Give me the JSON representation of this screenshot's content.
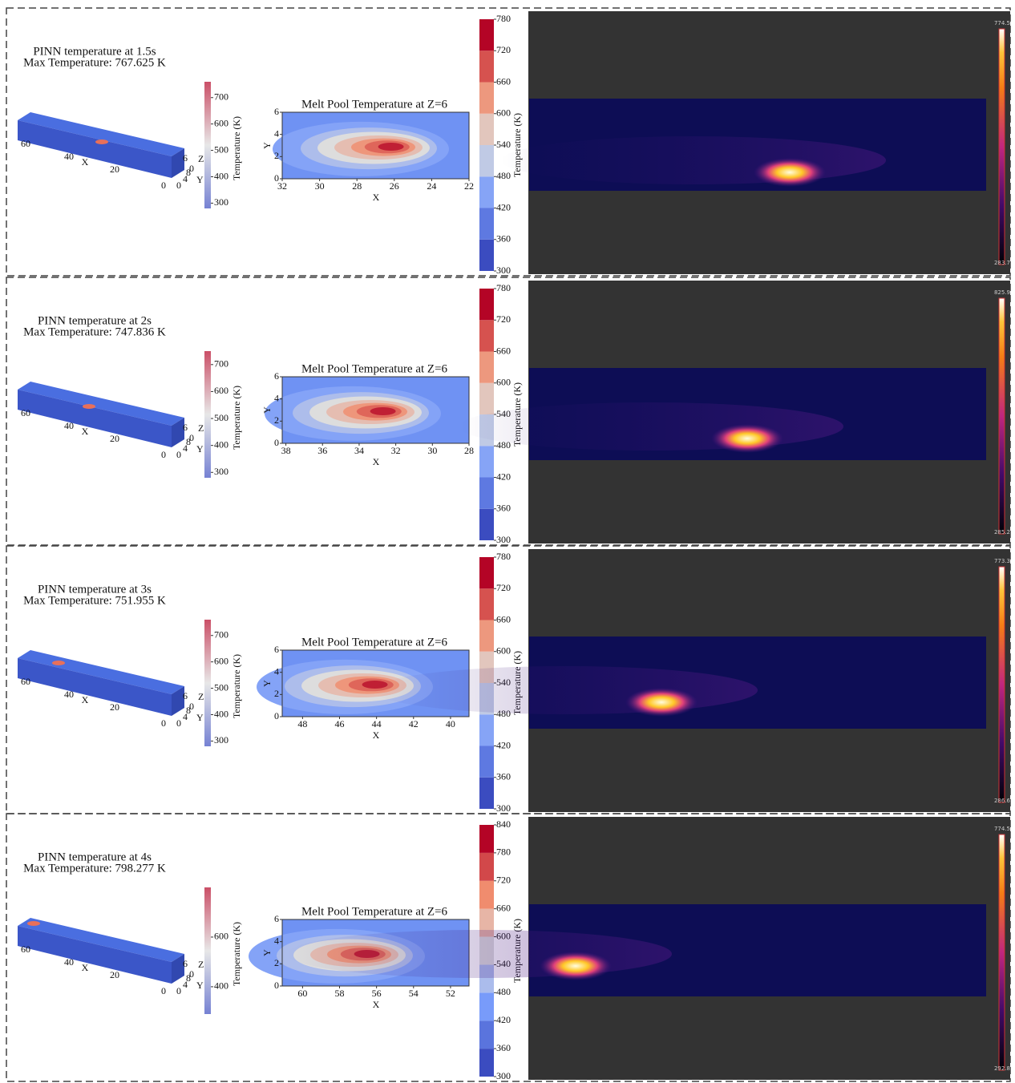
{
  "panels": [
    {
      "title": "PINN temperature at 1.5s",
      "max_temperature": "Max Temperature: 767.625 K",
      "box_axes": {
        "x_ticks": [
          "60",
          "40",
          "20",
          "0"
        ],
        "x_label": "X",
        "y_label": "Y",
        "z_label": "Z",
        "z_tick": "6",
        "y_ticks": [
          "0",
          "4",
          "8"
        ],
        "y_zero": "0"
      },
      "small_colorbar": {
        "label": "Temperature (K)",
        "range": [
          280,
          760
        ],
        "ticks": [
          300,
          400,
          500,
          600,
          700
        ]
      },
      "contour": {
        "title": "Melt Pool Temperature at Z=6",
        "x_label": "X",
        "y_label": "Y",
        "xlim": [
          32,
          22
        ],
        "xticks": [
          32,
          30,
          28,
          26,
          24,
          22
        ],
        "ylim": [
          0,
          6
        ],
        "yticks": [
          0,
          2,
          4,
          6
        ]
      },
      "colorbar": {
        "label": "Temperature (K)",
        "ticks": [
          300,
          360,
          420,
          480,
          540,
          600,
          660,
          720,
          780
        ]
      },
      "thermal": {
        "max_label": "774.5",
        "min_label": "283.7"
      }
    },
    {
      "title": "PINN temperature at 2s",
      "max_temperature": "Max Temperature: 747.836 K",
      "box_axes": {
        "x_ticks": [
          "60",
          "40",
          "20",
          "0"
        ],
        "x_label": "X",
        "y_label": "Y",
        "z_label": "Z",
        "z_tick": "6",
        "y_ticks": [
          "0",
          "4",
          "8"
        ],
        "y_zero": "0"
      },
      "small_colorbar": {
        "label": "Temperature (K)",
        "range": [
          280,
          750
        ],
        "ticks": [
          300,
          400,
          500,
          600,
          700
        ]
      },
      "contour": {
        "title": "Melt Pool Temperature at Z=6",
        "x_label": "X",
        "y_label": "Y",
        "xlim": [
          38.2,
          28
        ],
        "xticks": [
          38,
          36,
          34,
          32,
          30,
          28
        ],
        "ylim": [
          0,
          6
        ],
        "yticks": [
          0,
          2,
          4,
          6
        ]
      },
      "colorbar": {
        "label": "Temperature (K)",
        "ticks": [
          300,
          360,
          420,
          480,
          540,
          600,
          660,
          720,
          780
        ]
      },
      "thermal": {
        "max_label": "825.9",
        "min_label": "285.2"
      }
    },
    {
      "title": "PINN temperature at 3s",
      "max_temperature": "Max Temperature: 751.955 K",
      "box_axes": {
        "x_ticks": [
          "60",
          "40",
          "20",
          "0"
        ],
        "x_label": "X",
        "y_label": "Y",
        "z_label": "Z",
        "z_tick": "6",
        "y_ticks": [
          "0",
          "4",
          "8"
        ],
        "y_zero": "0"
      },
      "small_colorbar": {
        "label": "Temperature (K)",
        "range": [
          280,
          760
        ],
        "ticks": [
          300,
          400,
          500,
          600,
          700
        ]
      },
      "contour": {
        "title": "Melt Pool Temperature at Z=6",
        "x_label": "X",
        "y_label": "Y",
        "xlim": [
          49.1,
          39
        ],
        "xticks": [
          48,
          46,
          44,
          42,
          40
        ],
        "ylim": [
          0,
          6
        ],
        "yticks": [
          0,
          2,
          4,
          6
        ]
      },
      "colorbar": {
        "label": "Temperature (K)",
        "ticks": [
          300,
          360,
          420,
          480,
          540,
          600,
          660,
          720,
          780
        ]
      },
      "thermal": {
        "max_label": "773.3",
        "min_label": "286.6"
      }
    },
    {
      "title": "PINN temperature at 4s",
      "max_temperature": "Max Temperature: 798.277 K",
      "box_axes": {
        "x_ticks": [
          "60",
          "40",
          "20",
          "0"
        ],
        "x_label": "X",
        "y_label": "Y",
        "z_label": "Z",
        "z_tick": "6",
        "y_ticks": [
          "0",
          "4",
          "8"
        ],
        "y_zero": "0"
      },
      "small_colorbar": {
        "label": "Temperature (K)",
        "range": [
          290,
          800
        ],
        "ticks": [
          400,
          600
        ]
      },
      "contour": {
        "title": "Melt Pool Temperature at Z=6",
        "x_label": "X",
        "y_label": "Y",
        "xlim": [
          61.1,
          51
        ],
        "xticks": [
          60,
          58,
          56,
          54,
          52
        ],
        "ylim": [
          0,
          6
        ],
        "yticks": [
          0,
          2,
          4,
          6
        ]
      },
      "colorbar": {
        "label": "Temperature (K)",
        "ticks": [
          300,
          360,
          420,
          480,
          540,
          600,
          660,
          720,
          780,
          840
        ]
      },
      "thermal": {
        "max_label": "774.5",
        "min_label": "292.8"
      }
    }
  ]
}
